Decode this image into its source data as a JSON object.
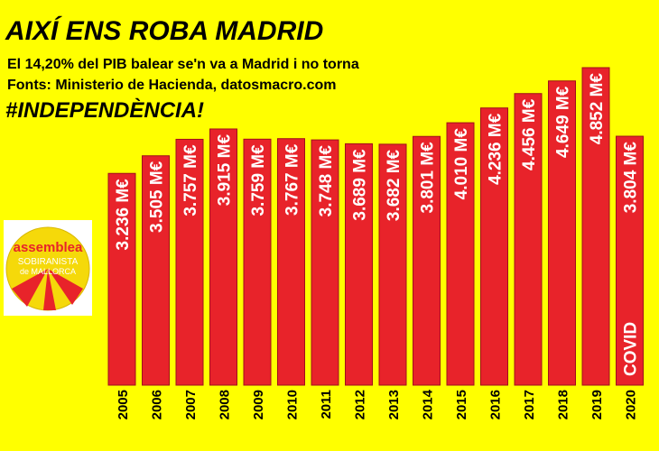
{
  "chart_data": {
    "type": "bar",
    "title": "AIXÍ ENS ROBA MADRID",
    "subtitle": "El 14,20% del PIB balear se'n va a Madrid i no torna",
    "source": "Fonts: Ministerio de Hacienda, datosmacro.com",
    "hashtag": "#INDEPENDÈNCIA!",
    "categories": [
      "2005",
      "2006",
      "2007",
      "2008",
      "2009",
      "2010",
      "2011",
      "2012",
      "2013",
      "2014",
      "2015",
      "2016",
      "2017",
      "2018",
      "2019",
      "2020"
    ],
    "values": [
      3236,
      3505,
      3757,
      3915,
      3759,
      3767,
      3748,
      3689,
      3682,
      3801,
      4010,
      4236,
      4456,
      4649,
      4852,
      3804
    ],
    "value_labels": [
      "3.236 M€",
      "3.505 M€",
      "3.757 M€",
      "3.915 M€",
      "3.759 M€",
      "3.767 M€",
      "3.748 M€",
      "3.689 M€",
      "3.682 M€",
      "3.801 M€",
      "4.010 M€",
      "4.236 M€",
      "4.456 M€",
      "4.649 M€",
      "4.852 M€",
      "3.804 M€"
    ],
    "color": "#e8232a",
    "annotations": [
      {
        "category": "2020",
        "text": "COVID"
      }
    ],
    "logo": {
      "line1": "assemblea",
      "line2": "SOBIRANISTA",
      "line3": "de MALLORCA"
    }
  }
}
